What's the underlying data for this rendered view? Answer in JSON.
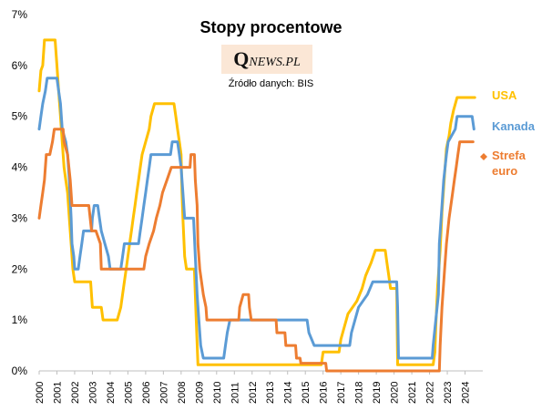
{
  "title": "Stopy procentowe",
  "logo": {
    "q": "Q",
    "rest": "NEWS.PL"
  },
  "source": "Źródło danych: BIS",
  "chart_data": {
    "type": "line",
    "ylim": [
      0,
      7
    ],
    "xlim": [
      2000,
      2025
    ],
    "yticks": [
      "0%",
      "1%",
      "2%",
      "3%",
      "4%",
      "5%",
      "6%",
      "7%"
    ],
    "xticks": [
      "2000",
      "2001",
      "2002",
      "2003",
      "2004",
      "2005",
      "2006",
      "2007",
      "2008",
      "2009",
      "2010",
      "2011",
      "2012",
      "2013",
      "2014",
      "2015",
      "2016",
      "2017",
      "2018",
      "2019",
      "2020",
      "2021",
      "2022",
      "2023",
      "2024"
    ],
    "grid": false,
    "legend_position": "right, end of series",
    "series": [
      {
        "name": "USA",
        "label": "USA",
        "color": "#ffc000",
        "points": [
          [
            2000,
            5.5
          ],
          [
            2000.1,
            5.9
          ],
          [
            2000.2,
            6.0
          ],
          [
            2000.3,
            6.5
          ],
          [
            2000.9,
            6.5
          ],
          [
            2001.0,
            6.0
          ],
          [
            2001.1,
            5.5
          ],
          [
            2001.2,
            5.0
          ],
          [
            2001.3,
            4.5
          ],
          [
            2001.4,
            4.0
          ],
          [
            2001.5,
            3.75
          ],
          [
            2001.6,
            3.5
          ],
          [
            2001.7,
            3.0
          ],
          [
            2001.8,
            2.5
          ],
          [
            2001.9,
            2.0
          ],
          [
            2002.0,
            1.75
          ],
          [
            2002.9,
            1.75
          ],
          [
            2003.0,
            1.25
          ],
          [
            2003.5,
            1.25
          ],
          [
            2003.6,
            1.0
          ],
          [
            2004.4,
            1.0
          ],
          [
            2004.6,
            1.25
          ],
          [
            2004.8,
            1.75
          ],
          [
            2004.9,
            2.0
          ],
          [
            2005.0,
            2.25
          ],
          [
            2005.1,
            2.5
          ],
          [
            2005.2,
            2.75
          ],
          [
            2005.3,
            3.0
          ],
          [
            2005.4,
            3.25
          ],
          [
            2005.5,
            3.5
          ],
          [
            2005.6,
            3.75
          ],
          [
            2005.7,
            4.0
          ],
          [
            2005.8,
            4.25
          ],
          [
            2006.0,
            4.5
          ],
          [
            2006.2,
            4.75
          ],
          [
            2006.3,
            5.0
          ],
          [
            2006.5,
            5.25
          ],
          [
            2007.6,
            5.25
          ],
          [
            2007.7,
            5.0
          ],
          [
            2007.8,
            4.75
          ],
          [
            2007.9,
            4.5
          ],
          [
            2008.0,
            4.25
          ],
          [
            2008.05,
            3.5
          ],
          [
            2008.1,
            3.0
          ],
          [
            2008.2,
            2.25
          ],
          [
            2008.3,
            2.0
          ],
          [
            2008.75,
            2.0
          ],
          [
            2008.8,
            1.5
          ],
          [
            2008.85,
            1.0
          ],
          [
            2008.95,
            0.12
          ],
          [
            2015.9,
            0.12
          ],
          [
            2016.0,
            0.37
          ],
          [
            2016.9,
            0.37
          ],
          [
            2017.0,
            0.62
          ],
          [
            2017.2,
            0.87
          ],
          [
            2017.4,
            1.12
          ],
          [
            2017.9,
            1.37
          ],
          [
            2018.2,
            1.62
          ],
          [
            2018.4,
            1.87
          ],
          [
            2018.7,
            2.12
          ],
          [
            2018.95,
            2.37
          ],
          [
            2019.5,
            2.37
          ],
          [
            2019.6,
            2.12
          ],
          [
            2019.7,
            1.87
          ],
          [
            2019.8,
            1.62
          ],
          [
            2020.15,
            1.62
          ],
          [
            2020.2,
            0.12
          ],
          [
            2022.2,
            0.12
          ],
          [
            2022.3,
            0.37
          ],
          [
            2022.35,
            0.87
          ],
          [
            2022.45,
            1.62
          ],
          [
            2022.6,
            2.37
          ],
          [
            2022.7,
            3.12
          ],
          [
            2022.85,
            3.87
          ],
          [
            2022.95,
            4.37
          ],
          [
            2023.1,
            4.62
          ],
          [
            2023.2,
            4.87
          ],
          [
            2023.35,
            5.12
          ],
          [
            2023.55,
            5.37
          ],
          [
            2024.55,
            5.37
          ]
        ]
      },
      {
        "name": "Kanada",
        "label": "Kanada",
        "color": "#5b9bd5",
        "points": [
          [
            2000,
            4.75
          ],
          [
            2000.1,
            5.0
          ],
          [
            2000.2,
            5.25
          ],
          [
            2000.35,
            5.5
          ],
          [
            2000.45,
            5.75
          ],
          [
            2001.0,
            5.75
          ],
          [
            2001.1,
            5.5
          ],
          [
            2001.2,
            5.25
          ],
          [
            2001.3,
            4.75
          ],
          [
            2001.5,
            4.5
          ],
          [
            2001.6,
            4.25
          ],
          [
            2001.7,
            3.75
          ],
          [
            2001.8,
            3.0
          ],
          [
            2001.85,
            2.5
          ],
          [
            2001.95,
            2.25
          ],
          [
            2002.0,
            2.0
          ],
          [
            2002.2,
            2.0
          ],
          [
            2002.3,
            2.25
          ],
          [
            2002.4,
            2.5
          ],
          [
            2002.5,
            2.75
          ],
          [
            2002.95,
            2.75
          ],
          [
            2003.0,
            3.0
          ],
          [
            2003.1,
            3.25
          ],
          [
            2003.3,
            3.25
          ],
          [
            2003.4,
            3.0
          ],
          [
            2003.5,
            2.75
          ],
          [
            2003.7,
            2.5
          ],
          [
            2003.9,
            2.25
          ],
          [
            2004.0,
            2.0
          ],
          [
            2004.6,
            2.0
          ],
          [
            2004.7,
            2.25
          ],
          [
            2004.8,
            2.5
          ],
          [
            2005.6,
            2.5
          ],
          [
            2005.7,
            2.75
          ],
          [
            2005.8,
            3.0
          ],
          [
            2005.9,
            3.25
          ],
          [
            2006.0,
            3.5
          ],
          [
            2006.1,
            3.75
          ],
          [
            2006.2,
            4.0
          ],
          [
            2006.3,
            4.25
          ],
          [
            2007.4,
            4.25
          ],
          [
            2007.5,
            4.5
          ],
          [
            2007.8,
            4.5
          ],
          [
            2007.9,
            4.25
          ],
          [
            2008.0,
            4.0
          ],
          [
            2008.1,
            3.5
          ],
          [
            2008.2,
            3.0
          ],
          [
            2008.7,
            3.0
          ],
          [
            2008.8,
            2.25
          ],
          [
            2008.9,
            1.5
          ],
          [
            2009.0,
            1.0
          ],
          [
            2009.1,
            0.5
          ],
          [
            2009.25,
            0.25
          ],
          [
            2010.4,
            0.25
          ],
          [
            2010.5,
            0.5
          ],
          [
            2010.6,
            0.75
          ],
          [
            2010.75,
            1.0
          ],
          [
            2015.1,
            1.0
          ],
          [
            2015.2,
            0.75
          ],
          [
            2015.5,
            0.5
          ],
          [
            2017.5,
            0.5
          ],
          [
            2017.6,
            0.75
          ],
          [
            2017.8,
            1.0
          ],
          [
            2018.0,
            1.25
          ],
          [
            2018.5,
            1.5
          ],
          [
            2018.8,
            1.75
          ],
          [
            2020.15,
            1.75
          ],
          [
            2020.2,
            1.25
          ],
          [
            2020.25,
            0.25
          ],
          [
            2022.15,
            0.25
          ],
          [
            2022.2,
            0.5
          ],
          [
            2022.35,
            1.0
          ],
          [
            2022.5,
            1.5
          ],
          [
            2022.55,
            2.5
          ],
          [
            2022.7,
            3.25
          ],
          [
            2022.8,
            3.75
          ],
          [
            2022.95,
            4.25
          ],
          [
            2023.05,
            4.5
          ],
          [
            2023.45,
            4.75
          ],
          [
            2023.55,
            5.0
          ],
          [
            2024.4,
            5.0
          ],
          [
            2024.5,
            4.75
          ]
        ]
      },
      {
        "name": "Strefa euro",
        "label_lines": [
          "Strefa",
          "euro"
        ],
        "color": "#ed7d31",
        "points": [
          [
            2000,
            3.0
          ],
          [
            2000.1,
            3.25
          ],
          [
            2000.2,
            3.5
          ],
          [
            2000.3,
            3.75
          ],
          [
            2000.4,
            4.25
          ],
          [
            2000.6,
            4.25
          ],
          [
            2000.75,
            4.5
          ],
          [
            2000.85,
            4.75
          ],
          [
            2001.35,
            4.75
          ],
          [
            2001.4,
            4.5
          ],
          [
            2001.6,
            4.25
          ],
          [
            2001.75,
            3.75
          ],
          [
            2001.85,
            3.25
          ],
          [
            2002.8,
            3.25
          ],
          [
            2002.95,
            2.75
          ],
          [
            2003.2,
            2.75
          ],
          [
            2003.45,
            2.5
          ],
          [
            2003.5,
            2.0
          ],
          [
            2005.9,
            2.0
          ],
          [
            2006.0,
            2.25
          ],
          [
            2006.2,
            2.5
          ],
          [
            2006.45,
            2.75
          ],
          [
            2006.6,
            3.0
          ],
          [
            2006.8,
            3.25
          ],
          [
            2006.95,
            3.5
          ],
          [
            2007.2,
            3.75
          ],
          [
            2007.45,
            4.0
          ],
          [
            2008.5,
            4.0
          ],
          [
            2008.55,
            4.25
          ],
          [
            2008.75,
            4.25
          ],
          [
            2008.8,
            3.75
          ],
          [
            2008.9,
            3.25
          ],
          [
            2008.95,
            2.5
          ],
          [
            2009.05,
            2.0
          ],
          [
            2009.25,
            1.5
          ],
          [
            2009.4,
            1.25
          ],
          [
            2009.45,
            1.0
          ],
          [
            2011.25,
            1.0
          ],
          [
            2011.3,
            1.25
          ],
          [
            2011.5,
            1.5
          ],
          [
            2011.8,
            1.5
          ],
          [
            2011.85,
            1.25
          ],
          [
            2011.95,
            1.0
          ],
          [
            2013.35,
            1.0
          ],
          [
            2013.4,
            0.75
          ],
          [
            2013.85,
            0.75
          ],
          [
            2013.9,
            0.5
          ],
          [
            2014.45,
            0.5
          ],
          [
            2014.5,
            0.25
          ],
          [
            2014.7,
            0.25
          ],
          [
            2014.75,
            0.15
          ],
          [
            2016.15,
            0.15
          ],
          [
            2016.2,
            0.0
          ],
          [
            2022.55,
            0.0
          ],
          [
            2022.6,
            0.5
          ],
          [
            2022.7,
            1.25
          ],
          [
            2022.85,
            2.0
          ],
          [
            2022.95,
            2.5
          ],
          [
            2023.1,
            3.0
          ],
          [
            2023.3,
            3.5
          ],
          [
            2023.4,
            3.75
          ],
          [
            2023.5,
            4.0
          ],
          [
            2023.6,
            4.25
          ],
          [
            2023.7,
            4.5
          ],
          [
            2024.45,
            4.5
          ]
        ]
      }
    ]
  }
}
